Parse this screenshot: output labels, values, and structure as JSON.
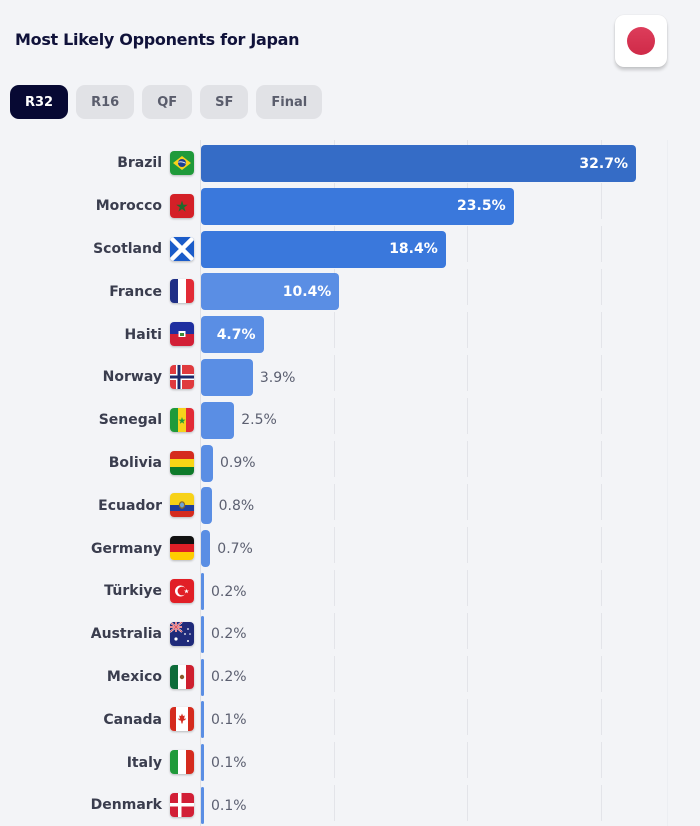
{
  "header": {
    "title": "Most Likely Opponents for Japan",
    "team_flag": "japan-flag",
    "team_flag_color": "#d6334f"
  },
  "tabs": [
    {
      "label": "R32",
      "active": true
    },
    {
      "label": "R16",
      "active": false
    },
    {
      "label": "QF",
      "active": false
    },
    {
      "label": "SF",
      "active": false
    },
    {
      "label": "Final",
      "active": false
    }
  ],
  "colors": {
    "active_tab_bg": "#070933",
    "inactive_tab_bg": "#e1e2e6",
    "bar_dark": "#356cc6",
    "bar_mid": "#3a78dc",
    "bar_light": "#5a8ee4",
    "background": "#f3f4f7"
  },
  "chart_data": {
    "type": "bar",
    "orientation": "horizontal",
    "title": "Most Likely Opponents for Japan",
    "subtitle": "R32",
    "xlabel": "",
    "ylabel": "",
    "unit": "%",
    "xlim": [
      0,
      35
    ],
    "grid": true,
    "gridlines_at": [
      0,
      10,
      20,
      30
    ],
    "legend": false,
    "categories": [
      "Brazil",
      "Morocco",
      "Scotland",
      "France",
      "Haiti",
      "Norway",
      "Senegal",
      "Bolivia",
      "Ecuador",
      "Germany",
      "Türkiye",
      "Australia",
      "Mexico",
      "Canada",
      "Italy",
      "Denmark"
    ],
    "values": [
      32.7,
      23.5,
      18.4,
      10.4,
      4.7,
      3.9,
      2.5,
      0.9,
      0.8,
      0.7,
      0.2,
      0.2,
      0.2,
      0.1,
      0.1,
      0.1
    ],
    "labels": [
      "32.7%",
      "23.5%",
      "18.4%",
      "10.4%",
      "4.7%",
      "3.9%",
      "2.5%",
      "0.9%",
      "0.8%",
      "0.7%",
      "0.2%",
      "0.2%",
      "0.2%",
      "0.1%",
      "0.1%",
      "0.1%"
    ],
    "flags": [
      "brazil-flag",
      "morocco-flag",
      "scotland-flag",
      "france-flag",
      "haiti-flag",
      "norway-flag",
      "senegal-flag",
      "bolivia-flag",
      "ecuador-flag",
      "germany-flag",
      "turkiye-flag",
      "australia-flag",
      "mexico-flag",
      "canada-flag",
      "italy-flag",
      "denmark-flag"
    ]
  }
}
